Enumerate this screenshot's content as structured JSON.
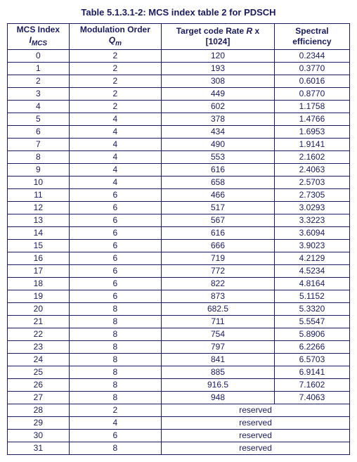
{
  "title": "Table 5.1.3.1-2: MCS index table 2 for PDSCH",
  "headers": {
    "mcs_index_line1": "MCS Index",
    "mcs_index_line2": "I",
    "mcs_index_sub": "MCS",
    "mod_order_line1": "Modulation Order",
    "mod_order_line2": "Q",
    "mod_order_sub": "m",
    "rate_line1": "Target code Rate ",
    "rate_italic": "R",
    "rate_line2": " x [1024]",
    "spectral_line1": "Spectral",
    "spectral_line2": "efficiency"
  },
  "columns": [
    "mcs",
    "qm",
    "rate",
    "eff"
  ],
  "rows": [
    {
      "mcs": "0",
      "qm": "2",
      "rate": "120",
      "eff": "0.2344"
    },
    {
      "mcs": "1",
      "qm": "2",
      "rate": "193",
      "eff": "0.3770"
    },
    {
      "mcs": "2",
      "qm": "2",
      "rate": "308",
      "eff": "0.6016"
    },
    {
      "mcs": "3",
      "qm": "2",
      "rate": "449",
      "eff": "0.8770"
    },
    {
      "mcs": "4",
      "qm": "2",
      "rate": "602",
      "eff": "1.1758"
    },
    {
      "mcs": "5",
      "qm": "4",
      "rate": "378",
      "eff": "1.4766"
    },
    {
      "mcs": "6",
      "qm": "4",
      "rate": "434",
      "eff": "1.6953"
    },
    {
      "mcs": "7",
      "qm": "4",
      "rate": "490",
      "eff": "1.9141"
    },
    {
      "mcs": "8",
      "qm": "4",
      "rate": "553",
      "eff": "2.1602"
    },
    {
      "mcs": "9",
      "qm": "4",
      "rate": "616",
      "eff": "2.4063"
    },
    {
      "mcs": "10",
      "qm": "4",
      "rate": "658",
      "eff": "2.5703"
    },
    {
      "mcs": "11",
      "qm": "6",
      "rate": "466",
      "eff": "2.7305"
    },
    {
      "mcs": "12",
      "qm": "6",
      "rate": "517",
      "eff": "3.0293"
    },
    {
      "mcs": "13",
      "qm": "6",
      "rate": "567",
      "eff": "3.3223"
    },
    {
      "mcs": "14",
      "qm": "6",
      "rate": "616",
      "eff": "3.6094"
    },
    {
      "mcs": "15",
      "qm": "6",
      "rate": "666",
      "eff": "3.9023"
    },
    {
      "mcs": "16",
      "qm": "6",
      "rate": "719",
      "eff": "4.2129"
    },
    {
      "mcs": "17",
      "qm": "6",
      "rate": "772",
      "eff": "4.5234"
    },
    {
      "mcs": "18",
      "qm": "6",
      "rate": "822",
      "eff": "4.8164"
    },
    {
      "mcs": "19",
      "qm": "6",
      "rate": "873",
      "eff": "5.1152"
    },
    {
      "mcs": "20",
      "qm": "8",
      "rate": "682.5",
      "eff": "5.3320"
    },
    {
      "mcs": "21",
      "qm": "8",
      "rate": "711",
      "eff": "5.5547"
    },
    {
      "mcs": "22",
      "qm": "8",
      "rate": "754",
      "eff": "5.8906"
    },
    {
      "mcs": "23",
      "qm": "8",
      "rate": "797",
      "eff": "6.2266"
    },
    {
      "mcs": "24",
      "qm": "8",
      "rate": "841",
      "eff": "6.5703"
    },
    {
      "mcs": "25",
      "qm": "8",
      "rate": "885",
      "eff": "6.9141"
    },
    {
      "mcs": "26",
      "qm": "8",
      "rate": "916.5",
      "eff": "7.1602"
    },
    {
      "mcs": "27",
      "qm": "8",
      "rate": "948",
      "eff": "7.4063"
    }
  ],
  "reserved_rows": [
    {
      "mcs": "28",
      "qm": "2",
      "reserved": "reserved"
    },
    {
      "mcs": "29",
      "qm": "4",
      "reserved": "reserved"
    },
    {
      "mcs": "30",
      "qm": "6",
      "reserved": "reserved"
    },
    {
      "mcs": "31",
      "qm": "8",
      "reserved": "reserved"
    }
  ],
  "style": {
    "text_color": "#1a1a5e",
    "border_color": "#1a1a5e",
    "background_color": "#ffffff",
    "title_fontsize": 13,
    "cell_fontsize": 12,
    "font_family": "Arial",
    "col_widths_pct": [
      18,
      27,
      33,
      22
    ]
  }
}
